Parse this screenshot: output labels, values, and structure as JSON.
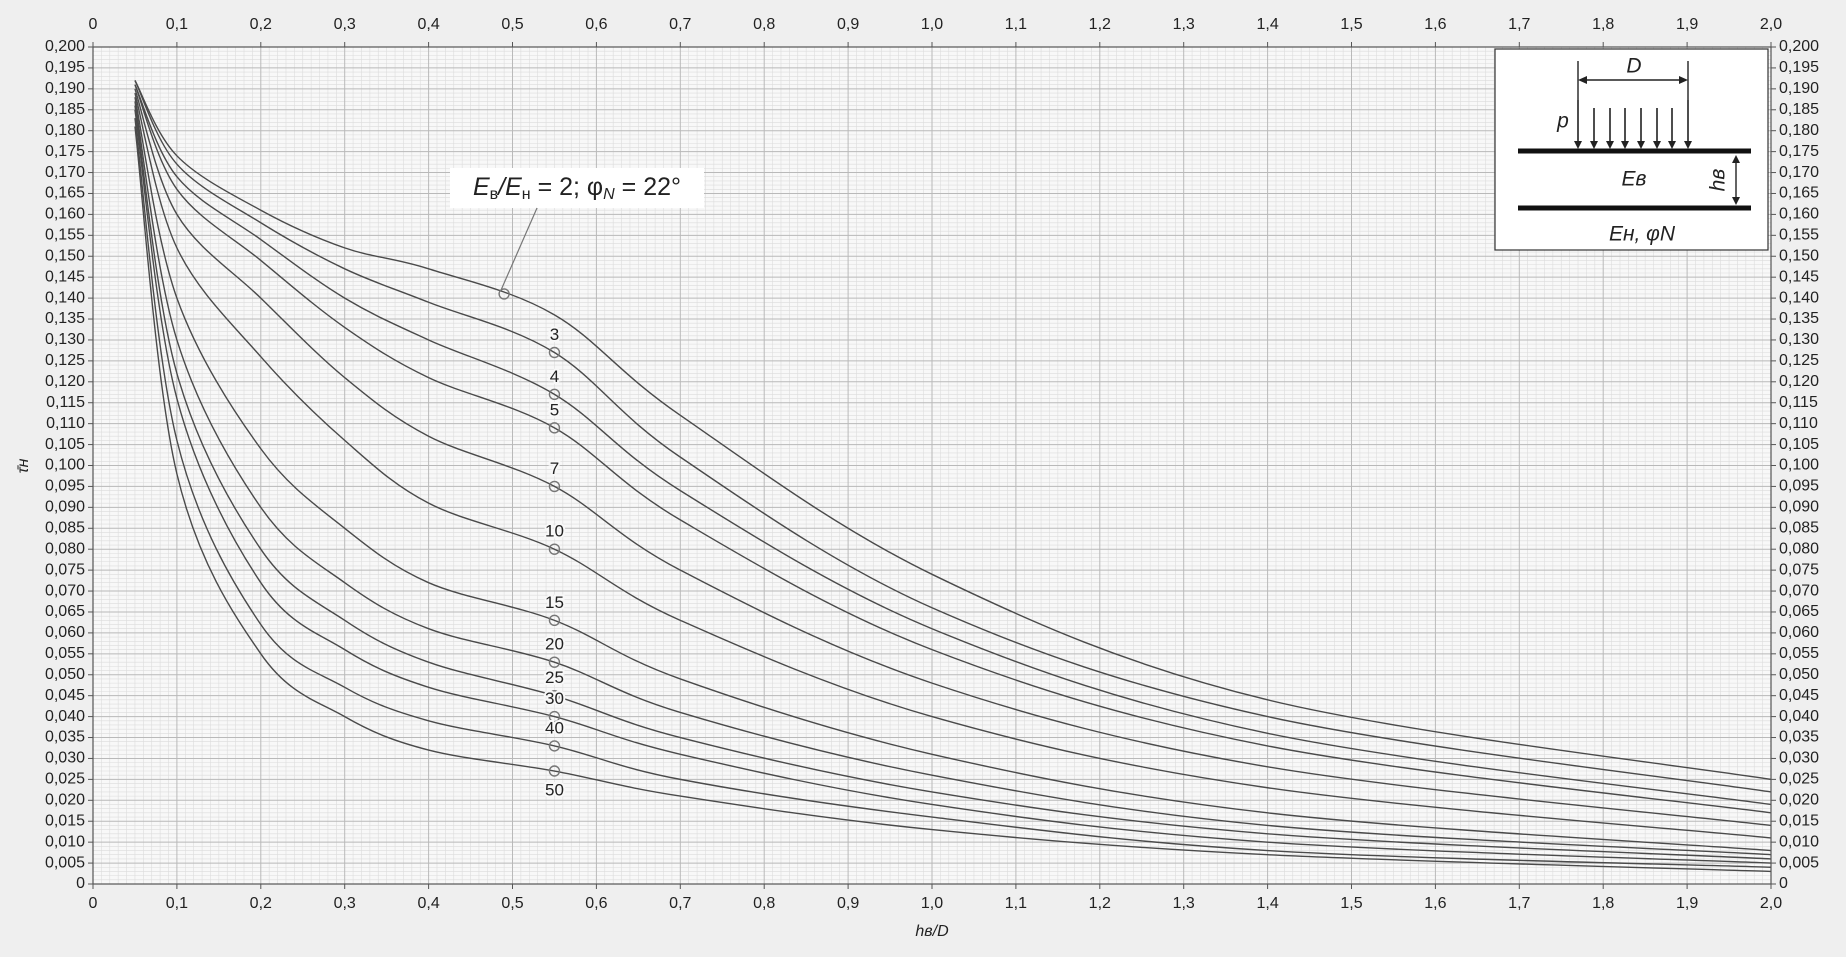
{
  "chart_data": {
    "type": "line",
    "xlabel": "hв/D",
    "ylabel": "τ̄н",
    "annotation_parts": [
      "E",
      "в",
      "/E",
      "н",
      " = 2; φ",
      "N",
      " = 22°"
    ],
    "annotation_x": 0.49,
    "annotation_y": 0.141,
    "x": [
      0.05,
      0.1,
      0.2,
      0.3,
      0.4,
      0.55,
      0.7,
      1.0,
      1.4,
      2.0
    ],
    "series": [
      {
        "name": "2",
        "color": "#4a4a4a",
        "values": [
          0.192,
          0.174,
          0.161,
          0.152,
          0.147,
          0.136,
          0.112,
          0.074,
          0.044,
          0.025
        ]
      },
      {
        "name": "3",
        "color": "#4a4a4a",
        "values": [
          0.192,
          0.172,
          0.158,
          0.147,
          0.139,
          0.127,
          0.102,
          0.066,
          0.04,
          0.022
        ]
      },
      {
        "name": "4",
        "color": "#4a4a4a",
        "values": [
          0.191,
          0.169,
          0.154,
          0.14,
          0.13,
          0.117,
          0.094,
          0.061,
          0.036,
          0.019
        ]
      },
      {
        "name": "5",
        "color": "#4a4a4a",
        "values": [
          0.191,
          0.166,
          0.149,
          0.133,
          0.121,
          0.109,
          0.087,
          0.056,
          0.033,
          0.017
        ]
      },
      {
        "name": "7",
        "color": "#4a4a4a",
        "values": [
          0.19,
          0.16,
          0.14,
          0.121,
          0.107,
          0.095,
          0.075,
          0.048,
          0.028,
          0.014
        ]
      },
      {
        "name": "10",
        "color": "#4a4a4a",
        "values": [
          0.189,
          0.152,
          0.126,
          0.106,
          0.091,
          0.08,
          0.063,
          0.04,
          0.023,
          0.011
        ]
      },
      {
        "name": "15",
        "color": "#4a4a4a",
        "values": [
          0.188,
          0.14,
          0.104,
          0.085,
          0.072,
          0.063,
          0.049,
          0.031,
          0.017,
          0.008
        ]
      },
      {
        "name": "20",
        "color": "#4a4a4a",
        "values": [
          0.187,
          0.13,
          0.09,
          0.072,
          0.061,
          0.053,
          0.041,
          0.026,
          0.014,
          0.007
        ]
      },
      {
        "name": "25",
        "color": "#4a4a4a",
        "values": [
          0.186,
          0.122,
          0.08,
          0.063,
          0.053,
          0.045,
          0.035,
          0.022,
          0.012,
          0.006
        ]
      },
      {
        "name": "30",
        "color": "#4a4a4a",
        "values": [
          0.185,
          0.116,
          0.072,
          0.056,
          0.047,
          0.04,
          0.031,
          0.019,
          0.01,
          0.005
        ]
      },
      {
        "name": "40",
        "color": "#4a4a4a",
        "values": [
          0.183,
          0.106,
          0.062,
          0.047,
          0.039,
          0.033,
          0.025,
          0.016,
          0.008,
          0.004
        ]
      },
      {
        "name": "50",
        "color": "#4a4a4a",
        "values": [
          0.181,
          0.098,
          0.055,
          0.04,
          0.032,
          0.027,
          0.021,
          0.013,
          0.007,
          0.003
        ]
      }
    ],
    "xlim": [
      0,
      2.0
    ],
    "ylim": [
      0,
      0.2
    ],
    "xticks": [
      0,
      {
        "value": 0.1,
        "label": "0,1"
      },
      {
        "value": 0.2,
        "label": "0,2"
      },
      {
        "value": 0.3,
        "label": "0,3"
      },
      {
        "value": 0.4,
        "label": "0,4"
      },
      {
        "value": 0.5,
        "label": "0,5"
      },
      {
        "value": 0.6,
        "label": "0,6"
      },
      {
        "value": 0.7,
        "label": "0,7"
      },
      {
        "value": 0.8,
        "label": "0,8"
      },
      {
        "value": 0.9,
        "label": "0,9"
      },
      {
        "value": 1.0,
        "label": "1,0"
      },
      {
        "value": 1.1,
        "label": "1,1"
      },
      {
        "value": 1.2,
        "label": "1,2"
      },
      {
        "value": 1.3,
        "label": "1,3"
      },
      {
        "value": 1.4,
        "label": "1,4"
      },
      {
        "value": 1.5,
        "label": "1,5"
      },
      {
        "value": 1.6,
        "label": "1,6"
      },
      {
        "value": 1.7,
        "label": "1,7"
      },
      {
        "value": 1.8,
        "label": "1,8"
      },
      {
        "value": 1.9,
        "label": "1,9"
      },
      {
        "value": 2.0,
        "label": "2,0"
      }
    ],
    "yticks": [
      0,
      {
        "value": 0.005,
        "label": "0,005"
      },
      {
        "value": 0.01,
        "label": "0,010"
      },
      {
        "value": 0.015,
        "label": "0,015"
      },
      {
        "value": 0.02,
        "label": "0,020"
      },
      {
        "value": 0.025,
        "label": "0,025"
      },
      {
        "value": 0.03,
        "label": "0,030"
      },
      {
        "value": 0.035,
        "label": "0,035"
      },
      {
        "value": 0.04,
        "label": "0,040"
      },
      {
        "value": 0.045,
        "label": "0,045"
      },
      {
        "value": 0.05,
        "label": "0,050"
      },
      {
        "value": 0.055,
        "label": "0,055"
      },
      {
        "value": 0.06,
        "label": "0,060"
      },
      {
        "value": 0.065,
        "label": "0,065"
      },
      {
        "value": 0.07,
        "label": "0,070"
      },
      {
        "value": 0.075,
        "label": "0,075"
      },
      {
        "value": 0.08,
        "label": "0,080"
      },
      {
        "value": 0.085,
        "label": "0,085"
      },
      {
        "value": 0.09,
        "label": "0,090"
      },
      {
        "value": 0.095,
        "label": "0,095"
      },
      {
        "value": 0.1,
        "label": "0,100"
      },
      {
        "value": 0.105,
        "label": "0,105"
      },
      {
        "value": 0.11,
        "label": "0,110"
      },
      {
        "value": 0.115,
        "label": "0,115"
      },
      {
        "value": 0.12,
        "label": "0,120"
      },
      {
        "value": 0.125,
        "label": "0,125"
      },
      {
        "value": 0.13,
        "label": "0,130"
      },
      {
        "value": 0.135,
        "label": "0,135"
      },
      {
        "value": 0.14,
        "label": "0,140"
      },
      {
        "value": 0.145,
        "label": "0,145"
      },
      {
        "value": 0.15,
        "label": "0,150"
      },
      {
        "value": 0.155,
        "label": "0,155"
      },
      {
        "value": 0.16,
        "label": "0,160"
      },
      {
        "value": 0.165,
        "label": "0,165"
      },
      {
        "value": 0.17,
        "label": "0,170"
      },
      {
        "value": 0.175,
        "label": "0,175"
      },
      {
        "value": 0.18,
        "label": "0,180"
      },
      {
        "value": 0.185,
        "label": "0,185"
      },
      {
        "value": 0.19,
        "label": "0,190"
      },
      {
        "value": 0.195,
        "label": "0,195"
      },
      {
        "value": 0.2,
        "label": "0,200"
      }
    ],
    "grid": true,
    "minor_grid": true,
    "inset": {
      "D": "D",
      "p": "p",
      "upper": "Eв",
      "h": "hв",
      "lower": "Eн, φN"
    }
  }
}
